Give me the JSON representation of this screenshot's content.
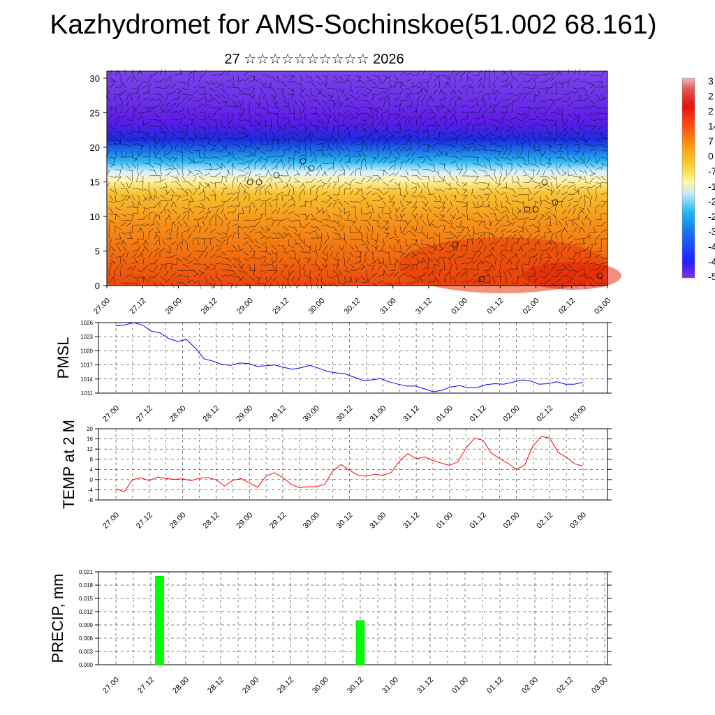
{
  "title": "Kazhydromet for AMS-Sochinskoe(51.002 68.161)",
  "subtitle": "27 ☆☆☆☆☆☆☆☆☆☆ 2026",
  "colors": {
    "pmsl_line": "#0000ff",
    "temp_line": "#ff0000",
    "precip_bar": "#00ff00",
    "grid": "#000000"
  },
  "time_ticks": [
    "27.00",
    "27.12",
    "28.00",
    "28.12",
    "29.00",
    "29.12",
    "30.00",
    "30.12",
    "31.00",
    "31.12",
    "01.00",
    "01.12",
    "02.00",
    "02.12",
    "03.00"
  ],
  "chart_data": [
    {
      "type": "heatmap",
      "name": "upper-air-cross-section",
      "title": "27 ☆☆☆☆☆☆☆☆☆☆ 2026",
      "xlabel": "",
      "ylabel": "",
      "ylim": [
        0,
        31
      ],
      "yticks": [
        0,
        5,
        10,
        15,
        20,
        25,
        30
      ],
      "x": [
        "27.00",
        "27.12",
        "28.00",
        "28.12",
        "29.00",
        "29.12",
        "30.00",
        "30.12",
        "31.00",
        "31.12",
        "01.00",
        "01.12",
        "02.00",
        "02.12",
        "03.00"
      ],
      "colorbar_labels": [
        "3",
        "2",
        "2",
        "14",
        "7",
        "0",
        "-7",
        "-1",
        "-2",
        "-2",
        "-3",
        "-4",
        "-4",
        "-5"
      ],
      "vertical_temperature_profile": [
        {
          "level": 0,
          "temp": 14
        },
        {
          "level": 5,
          "temp": 10
        },
        {
          "level": 10,
          "temp": 5
        },
        {
          "level": 15,
          "temp": -5
        },
        {
          "level": 18,
          "temp": -20
        },
        {
          "level": 20,
          "temp": -35
        },
        {
          "level": 22,
          "temp": -48
        },
        {
          "level": 25,
          "temp": -52
        },
        {
          "level": 30,
          "temp": -50
        }
      ]
    },
    {
      "type": "line",
      "name": "pmsl",
      "ylabel": "PMSL",
      "ylim": [
        1011,
        1026
      ],
      "yticks": [
        1011,
        1014,
        1017,
        1020,
        1023,
        1026
      ],
      "x_start": 0,
      "x_step_hours": 3,
      "values": [
        1025.3,
        1025.5,
        1026,
        1025.5,
        1024.2,
        1023.8,
        1022.6,
        1022,
        1022.4,
        1020.6,
        1018.3,
        1017.8,
        1017.1,
        1016.9,
        1017.4,
        1017.3,
        1016.7,
        1016.8,
        1017,
        1016.5,
        1016.1,
        1016.4,
        1016.9,
        1016.3,
        1015.6,
        1015.3,
        1015.1,
        1014.4,
        1013.7,
        1013.8,
        1014.1,
        1013.4,
        1012.9,
        1012.5,
        1012.5,
        1011.9,
        1011.3,
        1011.6,
        1012.3,
        1012.6,
        1012.1,
        1012.2,
        1012.8,
        1013,
        1012.9,
        1013.3,
        1013.8,
        1013.6,
        1012.9,
        1013,
        1013.4,
        1012.9,
        1012.9,
        1013.3
      ]
    },
    {
      "type": "line",
      "name": "temp-2m",
      "ylabel": "TEMP at 2 M",
      "ylim": [
        -8,
        20
      ],
      "yticks": [
        -8,
        -4,
        0,
        4,
        8,
        12,
        16,
        20
      ],
      "x_start": 0,
      "x_step_hours": 3,
      "values": [
        -3.6,
        -4.8,
        0,
        0.7,
        -0.4,
        1,
        0.4,
        0.1,
        0.3,
        -0.4,
        0.5,
        0.8,
        0,
        -2.6,
        -0.3,
        0.4,
        -1.3,
        -3,
        1.4,
        2.7,
        0.8,
        -1.8,
        -3.2,
        -2.8,
        -2.8,
        -1.9,
        3.4,
        5.9,
        3.7,
        1.8,
        1.3,
        2.1,
        1.7,
        2.8,
        7.3,
        10.2,
        8.2,
        8.9,
        7.5,
        6.5,
        5.6,
        7,
        12.6,
        16.2,
        15.5,
        10.4,
        8.3,
        6.4,
        4,
        5.7,
        13.3,
        16.9,
        16.4,
        10.7,
        8.8,
        6.2,
        5.3
      ]
    },
    {
      "type": "bar",
      "name": "precipitation",
      "ylabel": "PRECIP, mm",
      "ylim": [
        0,
        0.021
      ],
      "yticks": [
        "0.000",
        "0.003",
        "0.006",
        "0.009",
        "0.012",
        "0.015",
        "0.018",
        "0.021"
      ],
      "bars": [
        {
          "x_hours": 15,
          "value": 0.02
        },
        {
          "x_hours": 84,
          "value": 0.01
        }
      ]
    }
  ]
}
